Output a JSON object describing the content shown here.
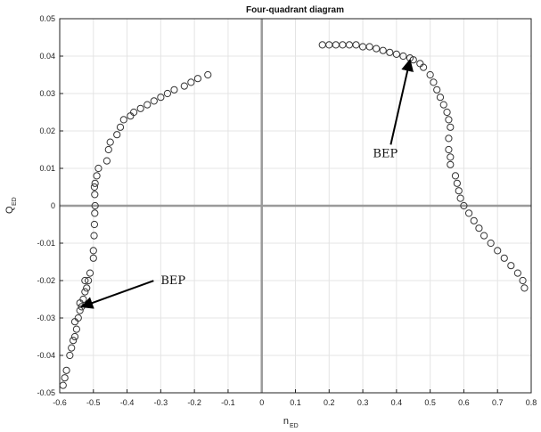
{
  "chart_data": {
    "type": "scatter",
    "title": "Four-quadrant diagram",
    "xlabel": "n",
    "xlabel_sub": "ED",
    "ylabel": "Q",
    "ylabel_sub": "ED",
    "xlim": [
      -0.6,
      0.8
    ],
    "ylim": [
      -0.05,
      0.05
    ],
    "xticks": [
      "-0.6",
      "-0.5",
      "-0.4",
      "-0.3",
      "-0.2",
      "-0.1",
      "0",
      "0.1",
      "0.2",
      "0.3",
      "0.4",
      "0.5",
      "0.6",
      "0.7",
      "0.8"
    ],
    "yticks": [
      "-0.05",
      "-0.04",
      "-0.03",
      "-0.02",
      "-0.01",
      "0",
      "0.01",
      "0.02",
      "0.03",
      "0.04",
      "0.05"
    ],
    "grid": true,
    "marker": "circle",
    "marker_color": "#333333",
    "axis_color": "#9a9a9a",
    "series": [
      {
        "points": [
          [
            -0.59,
            -0.048
          ],
          [
            -0.585,
            -0.046
          ],
          [
            -0.58,
            -0.044
          ],
          [
            -0.57,
            -0.04
          ],
          [
            -0.565,
            -0.038
          ],
          [
            -0.56,
            -0.036
          ],
          [
            -0.555,
            -0.035
          ],
          [
            -0.55,
            -0.033
          ],
          [
            -0.555,
            -0.031
          ],
          [
            -0.545,
            -0.03
          ],
          [
            -0.54,
            -0.028
          ],
          [
            -0.535,
            -0.027
          ],
          [
            -0.54,
            -0.026
          ],
          [
            -0.53,
            -0.025
          ],
          [
            -0.525,
            -0.023
          ],
          [
            -0.52,
            -0.022
          ],
          [
            -0.525,
            -0.02
          ],
          [
            -0.515,
            -0.02
          ],
          [
            -0.51,
            -0.018
          ],
          [
            -0.5,
            -0.014
          ],
          [
            -0.5,
            -0.012
          ],
          [
            -0.498,
            -0.008
          ],
          [
            -0.497,
            -0.005
          ],
          [
            -0.496,
            -0.002
          ],
          [
            -0.495,
            0.0
          ],
          [
            -0.496,
            0.003
          ],
          [
            -0.497,
            0.005
          ],
          [
            -0.495,
            0.006
          ],
          [
            -0.49,
            0.008
          ],
          [
            -0.485,
            0.01
          ],
          [
            -0.46,
            0.012
          ],
          [
            -0.455,
            0.015
          ],
          [
            -0.45,
            0.017
          ],
          [
            -0.43,
            0.019
          ],
          [
            -0.42,
            0.021
          ],
          [
            -0.41,
            0.023
          ],
          [
            -0.39,
            0.024
          ],
          [
            -0.38,
            0.025
          ],
          [
            -0.36,
            0.026
          ],
          [
            -0.34,
            0.027
          ],
          [
            -0.32,
            0.028
          ],
          [
            -0.3,
            0.029
          ],
          [
            -0.28,
            0.03
          ],
          [
            -0.26,
            0.031
          ],
          [
            -0.23,
            0.032
          ],
          [
            -0.21,
            0.033
          ],
          [
            -0.19,
            0.034
          ],
          [
            -0.16,
            0.035
          ],
          [
            0.18,
            0.043
          ],
          [
            0.2,
            0.043
          ],
          [
            0.22,
            0.043
          ],
          [
            0.24,
            0.043
          ],
          [
            0.26,
            0.043
          ],
          [
            0.28,
            0.043
          ],
          [
            0.3,
            0.0425
          ],
          [
            0.32,
            0.0425
          ],
          [
            0.34,
            0.042
          ],
          [
            0.36,
            0.0415
          ],
          [
            0.38,
            0.041
          ],
          [
            0.4,
            0.0405
          ],
          [
            0.42,
            0.04
          ],
          [
            0.44,
            0.0395
          ],
          [
            0.45,
            0.039
          ],
          [
            0.47,
            0.038
          ],
          [
            0.48,
            0.037
          ],
          [
            0.5,
            0.035
          ],
          [
            0.51,
            0.033
          ],
          [
            0.52,
            0.031
          ],
          [
            0.53,
            0.029
          ],
          [
            0.54,
            0.027
          ],
          [
            0.55,
            0.025
          ],
          [
            0.555,
            0.023
          ],
          [
            0.56,
            0.021
          ],
          [
            0.555,
            0.018
          ],
          [
            0.555,
            0.015
          ],
          [
            0.56,
            0.013
          ],
          [
            0.56,
            0.011
          ],
          [
            0.575,
            0.008
          ],
          [
            0.58,
            0.006
          ],
          [
            0.585,
            0.004
          ],
          [
            0.59,
            0.002
          ],
          [
            0.6,
            0.0
          ],
          [
            0.615,
            -0.002
          ],
          [
            0.63,
            -0.004
          ],
          [
            0.645,
            -0.006
          ],
          [
            0.66,
            -0.008
          ],
          [
            0.68,
            -0.01
          ],
          [
            0.7,
            -0.012
          ],
          [
            0.72,
            -0.014
          ],
          [
            0.74,
            -0.016
          ],
          [
            0.76,
            -0.018
          ],
          [
            0.775,
            -0.02
          ],
          [
            0.78,
            -0.022
          ]
        ]
      }
    ],
    "annotations": [
      {
        "text": "BEP",
        "text_x": 0.33,
        "text_y": 0.013,
        "target_x": 0.44,
        "target_y": 0.039
      },
      {
        "text": "BEP",
        "text_x": -0.3,
        "text_y": -0.021,
        "target_x": -0.535,
        "target_y": -0.027
      }
    ]
  }
}
